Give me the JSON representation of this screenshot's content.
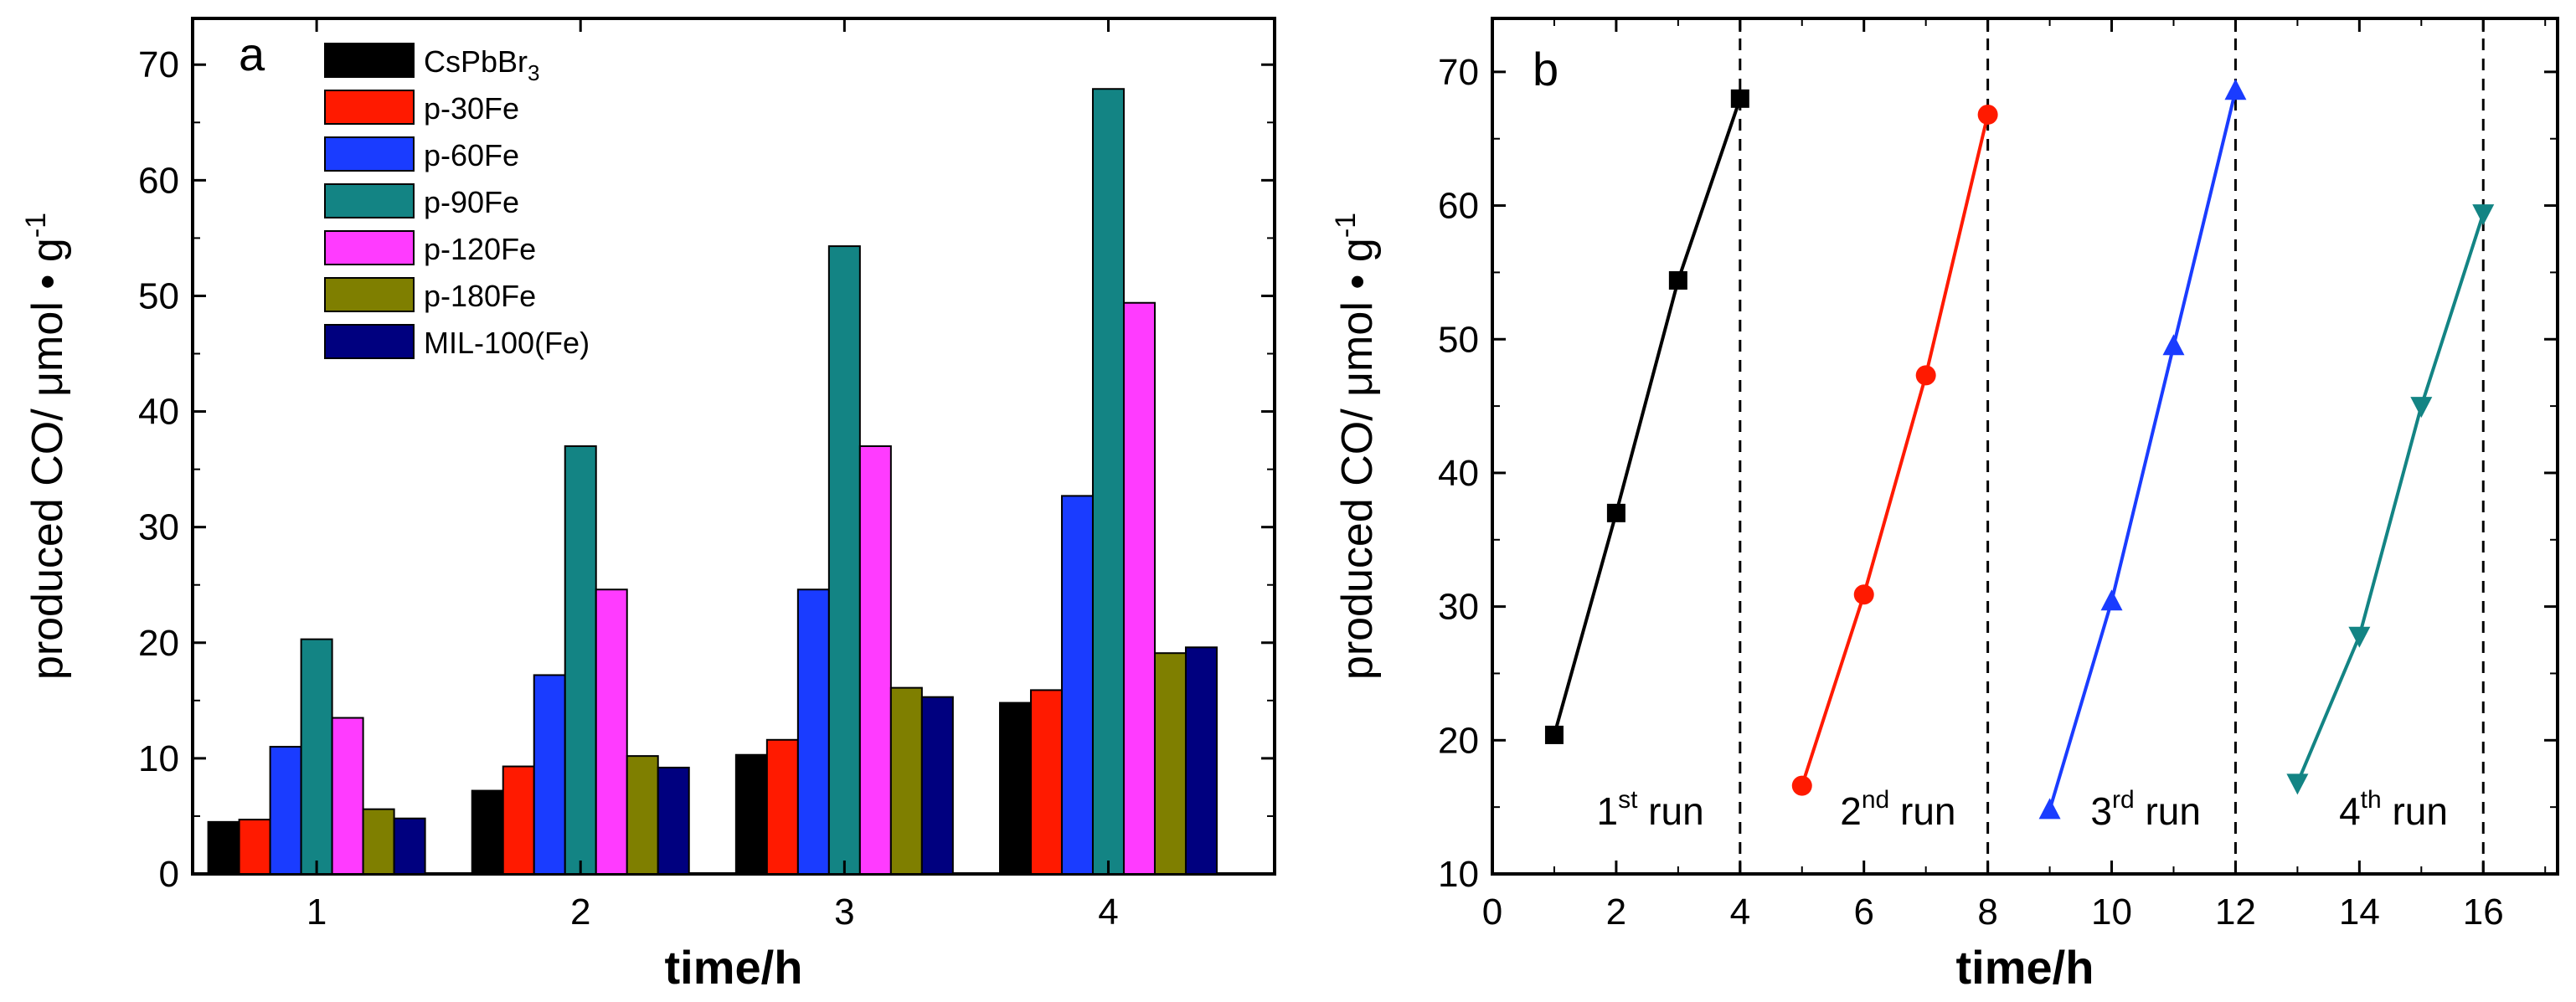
{
  "chart_data": [
    {
      "type": "bar",
      "panel_letter": "a",
      "categories": [
        "1",
        "2",
        "3",
        "4"
      ],
      "xlabel": "time/h",
      "ylabel": "produced CO/ μmol • g",
      "ylabel_sup": "-1",
      "ylim": [
        0,
        74
      ],
      "yticks": [
        "0",
        "10",
        "20",
        "30",
        "40",
        "50",
        "60",
        "70"
      ],
      "series": [
        {
          "name": "CsPbBr",
          "name_sub": "3",
          "color": "#000000",
          "values": [
            4.5,
            7.2,
            10.3,
            14.8
          ]
        },
        {
          "name": "p-30Fe",
          "color": "#ff1a00",
          "values": [
            4.7,
            9.3,
            11.6,
            15.9
          ]
        },
        {
          "name": "p-60Fe",
          "color": "#1a3cff",
          "values": [
            11.0,
            17.2,
            24.6,
            32.7
          ]
        },
        {
          "name": "p-90Fe",
          "color": "#138484",
          "values": [
            20.3,
            37.0,
            54.3,
            67.9
          ]
        },
        {
          "name": "p-120Fe",
          "color": "#ff3bff",
          "values": [
            13.5,
            24.6,
            37.0,
            49.4
          ]
        },
        {
          "name": "p-180Fe",
          "color": "#7f7f00",
          "values": [
            5.6,
            10.2,
            16.1,
            19.1
          ]
        },
        {
          "name": "MIL-100(Fe)",
          "color": "#00007f",
          "values": [
            4.8,
            9.2,
            15.3,
            19.6
          ]
        }
      ]
    },
    {
      "type": "line",
      "panel_letter": "b",
      "xlabel": "time/h",
      "ylabel": "produced CO/ μmol • g",
      "ylabel_sup": "-1",
      "xlim": [
        0,
        17.2
      ],
      "ylim": [
        10,
        74
      ],
      "xticks": [
        "0",
        "2",
        "4",
        "6",
        "8",
        "10",
        "12",
        "14",
        "16"
      ],
      "yticks": [
        "10",
        "20",
        "30",
        "40",
        "50",
        "60",
        "70"
      ],
      "dividers": [
        4,
        8,
        12,
        16
      ],
      "series": [
        {
          "name": "1st run",
          "run_num": "1",
          "run_sup": "st",
          "run_word": " run",
          "marker": "square",
          "color": "#000000",
          "x": [
            1,
            2,
            3,
            4
          ],
          "y": [
            20.4,
            37.0,
            54.4,
            68.0
          ]
        },
        {
          "name": "2nd run",
          "run_num": "2",
          "run_sup": "nd",
          "run_word": " run",
          "marker": "circle",
          "color": "#ff1a00",
          "x": [
            5,
            6,
            7,
            8
          ],
          "y": [
            16.6,
            30.9,
            47.3,
            66.8
          ]
        },
        {
          "name": "3rd run",
          "run_num": "3",
          "run_sup": "rd",
          "run_word": " run",
          "marker": "triangle-up",
          "color": "#1a3cff",
          "x": [
            9,
            10,
            11,
            12
          ],
          "y": [
            14.8,
            30.4,
            49.5,
            68.6
          ]
        },
        {
          "name": "4th run",
          "run_num": "4",
          "run_sup": "th",
          "run_word": " run",
          "marker": "triangle-down",
          "color": "#138484",
          "x": [
            13,
            14,
            15,
            16
          ],
          "y": [
            16.8,
            27.8,
            45.0,
            59.4
          ]
        }
      ]
    }
  ]
}
